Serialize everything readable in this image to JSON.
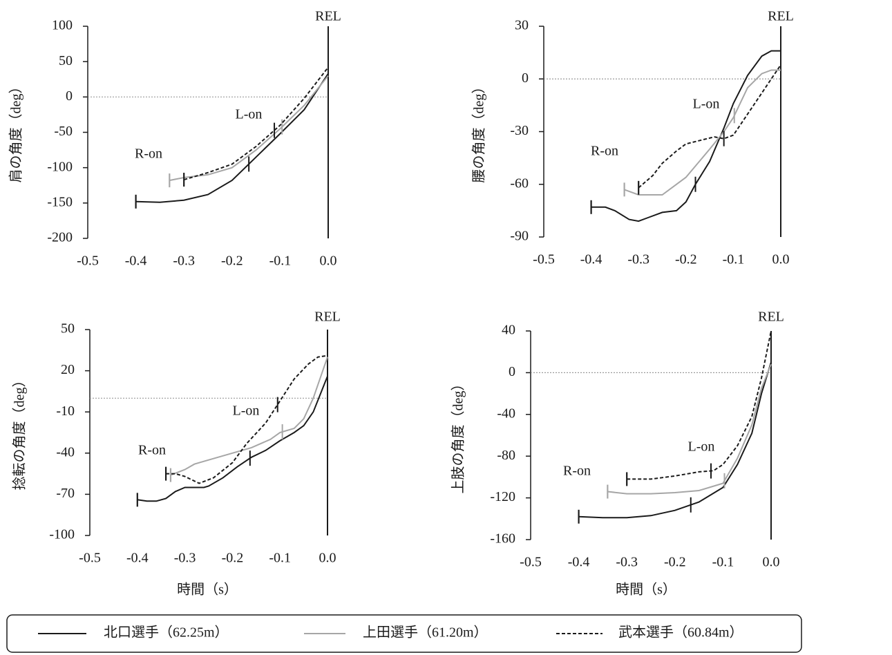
{
  "chart_data": [
    {
      "type": "line",
      "y_label": "肩の角度（deg）",
      "rel_label": "REL",
      "r_on_label": "R-on",
      "l_on_label": "L-on",
      "xlim": [
        -0.5,
        0
      ],
      "xticks": [
        -0.5,
        -0.4,
        -0.3,
        -0.2,
        -0.1,
        {
          "value": 0,
          "label": "0.0"
        }
      ],
      "ylim": [
        -200,
        100
      ],
      "yticks": [
        -200,
        -150,
        -100,
        -50,
        0,
        50,
        100
      ],
      "zero_line": true,
      "series": [
        {
          "name": "北口選手（62.25m）",
          "color": "#1a1a1a",
          "dash": "solid",
          "l_on": -0.165,
          "x": [
            -0.4,
            -0.35,
            -0.3,
            -0.25,
            -0.2,
            -0.15,
            -0.1,
            -0.05,
            0
          ],
          "values": [
            -148,
            -149,
            -146,
            -138,
            -118,
            -85,
            -52,
            -18,
            33
          ]
        },
        {
          "name": "上田選手（61.20m）",
          "color": "#a6a6a6",
          "dash": "solid",
          "l_on": -0.096,
          "x": [
            -0.33,
            -0.3,
            -0.25,
            -0.2,
            -0.15,
            -0.1,
            -0.05,
            0
          ],
          "values": [
            -118,
            -114,
            -110,
            -100,
            -75,
            -45,
            -12,
            30
          ]
        },
        {
          "name": "武本選手（60.84m）",
          "color": "#1a1a1a",
          "dash": "dashed",
          "l_on": -0.112,
          "x": [
            -0.3,
            -0.25,
            -0.2,
            -0.15,
            -0.1,
            -0.05,
            0
          ],
          "values": [
            -117,
            -107,
            -95,
            -70,
            -40,
            -2,
            42
          ]
        }
      ]
    },
    {
      "type": "line",
      "y_label": "腰の角度（deg）",
      "rel_label": "REL",
      "r_on_label": "R-on",
      "l_on_label": "L-on",
      "xlim": [
        -0.5,
        0
      ],
      "xticks": [
        -0.5,
        -0.4,
        -0.3,
        -0.2,
        -0.1,
        {
          "value": 0,
          "label": "0.0"
        }
      ],
      "ylim": [
        -90,
        30
      ],
      "yticks": [
        -90,
        -60,
        -30,
        0,
        30
      ],
      "zero_line": true,
      "series": [
        {
          "name": "北口選手（62.25m）",
          "color": "#1a1a1a",
          "dash": "solid",
          "l_on": -0.18,
          "x": [
            -0.4,
            -0.37,
            -0.35,
            -0.32,
            -0.3,
            -0.28,
            -0.25,
            -0.22,
            -0.2,
            -0.18,
            -0.15,
            -0.12,
            -0.1,
            -0.07,
            -0.04,
            -0.02,
            0
          ],
          "values": [
            -73,
            -73,
            -75,
            -80,
            -81,
            -79,
            -76,
            -75,
            -70,
            -60,
            -47,
            -28,
            -14,
            2,
            13,
            16,
            16
          ]
        },
        {
          "name": "上田選手（61.20m）",
          "color": "#a6a6a6",
          "dash": "solid",
          "l_on": -0.098,
          "x": [
            -0.33,
            -0.3,
            -0.25,
            -0.2,
            -0.15,
            -0.12,
            -0.1,
            -0.07,
            -0.04,
            -0.02,
            0
          ],
          "values": [
            -63,
            -66,
            -66,
            -56,
            -40,
            -30,
            -22,
            -5,
            3,
            5,
            5
          ]
        },
        {
          "name": "武本選手（60.84m）",
          "color": "#1a1a1a",
          "dash": "dashed",
          "l_on": -0.12,
          "x": [
            -0.3,
            -0.27,
            -0.25,
            -0.22,
            -0.2,
            -0.17,
            -0.14,
            -0.12,
            -0.1,
            -0.07,
            -0.04,
            0
          ],
          "values": [
            -62,
            -55,
            -48,
            -41,
            -37,
            -35,
            -33,
            -34,
            -32,
            -20,
            -8,
            8
          ]
        }
      ]
    },
    {
      "type": "line",
      "y_label": "捻転の角度（deg）",
      "x_label": "時間（s）",
      "rel_label": "REL",
      "r_on_label": "R-on",
      "l_on_label": "L-on",
      "xlim": [
        -0.5,
        0
      ],
      "xticks": [
        -0.5,
        -0.4,
        -0.3,
        -0.2,
        -0.1,
        {
          "value": 0,
          "label": "0.0"
        }
      ],
      "ylim": [
        -100,
        50
      ],
      "yticks": [
        -100,
        -70,
        -40,
        -10,
        20,
        50
      ],
      "zero_line": true,
      "series": [
        {
          "name": "北口選手（62.25m）",
          "color": "#1a1a1a",
          "dash": "solid",
          "l_on": -0.163,
          "x": [
            -0.4,
            -0.38,
            -0.36,
            -0.34,
            -0.32,
            -0.3,
            -0.28,
            -0.26,
            -0.25,
            -0.22,
            -0.19,
            -0.16,
            -0.13,
            -0.1,
            -0.07,
            -0.05,
            -0.03,
            0
          ],
          "values": [
            -74,
            -75,
            -75,
            -73,
            -68,
            -65,
            -65,
            -65,
            -64,
            -58,
            -50,
            -43,
            -38,
            -31,
            -25,
            -20,
            -10,
            16
          ]
        },
        {
          "name": "上田選手（61.20m）",
          "color": "#a6a6a6",
          "dash": "solid",
          "l_on": -0.095,
          "x": [
            -0.33,
            -0.3,
            -0.28,
            -0.25,
            -0.2,
            -0.16,
            -0.12,
            -0.1,
            -0.07,
            -0.05,
            -0.03,
            0
          ],
          "values": [
            -56,
            -52,
            -48,
            -45,
            -40,
            -36,
            -30,
            -25,
            -22,
            -15,
            0,
            30
          ]
        },
        {
          "name": "武本選手（60.84m）",
          "color": "#1a1a1a",
          "dash": "dashed",
          "l_on": -0.105,
          "x": [
            -0.34,
            -0.32,
            -0.3,
            -0.27,
            -0.24,
            -0.2,
            -0.17,
            -0.13,
            -0.1,
            -0.07,
            -0.04,
            -0.02,
            0
          ],
          "values": [
            -55,
            -55,
            -57,
            -62,
            -58,
            -47,
            -33,
            -18,
            -2,
            14,
            25,
            30,
            31
          ]
        }
      ]
    },
    {
      "type": "line",
      "y_label": "上肢の角度（deg）",
      "x_label": "時間（s）",
      "rel_label": "REL",
      "r_on_label": "R-on",
      "l_on_label": "L-on",
      "xlim": [
        -0.5,
        0
      ],
      "xticks": [
        -0.5,
        -0.4,
        -0.3,
        -0.2,
        -0.1,
        {
          "value": 0,
          "label": "0.0"
        }
      ],
      "ylim": [
        -160,
        40
      ],
      "yticks": [
        -160,
        -120,
        -80,
        -40,
        0,
        40
      ],
      "zero_line": true,
      "series": [
        {
          "name": "北口選手（62.25m）",
          "color": "#1a1a1a",
          "dash": "solid",
          "l_on": -0.167,
          "x": [
            -0.4,
            -0.35,
            -0.3,
            -0.25,
            -0.2,
            -0.15,
            -0.1,
            -0.07,
            -0.04,
            -0.02,
            0
          ],
          "values": [
            -138,
            -139,
            -139,
            -137,
            -132,
            -124,
            -110,
            -88,
            -58,
            -20,
            10
          ]
        },
        {
          "name": "上田選手（61.20m）",
          "color": "#a6a6a6",
          "dash": "solid",
          "l_on": -0.097,
          "x": [
            -0.34,
            -0.3,
            -0.25,
            -0.2,
            -0.15,
            -0.1,
            -0.07,
            -0.04,
            -0.02,
            0
          ],
          "values": [
            -114,
            -116,
            -116,
            -115,
            -113,
            -106,
            -82,
            -50,
            -15,
            8
          ]
        },
        {
          "name": "武本選手（60.84m）",
          "color": "#1a1a1a",
          "dash": "dashed",
          "l_on": -0.125,
          "x": [
            -0.3,
            -0.25,
            -0.2,
            -0.15,
            -0.12,
            -0.1,
            -0.07,
            -0.04,
            -0.02,
            0
          ],
          "values": [
            -102,
            -102,
            -99,
            -95,
            -94,
            -88,
            -70,
            -42,
            -5,
            40
          ]
        }
      ]
    }
  ]
}
